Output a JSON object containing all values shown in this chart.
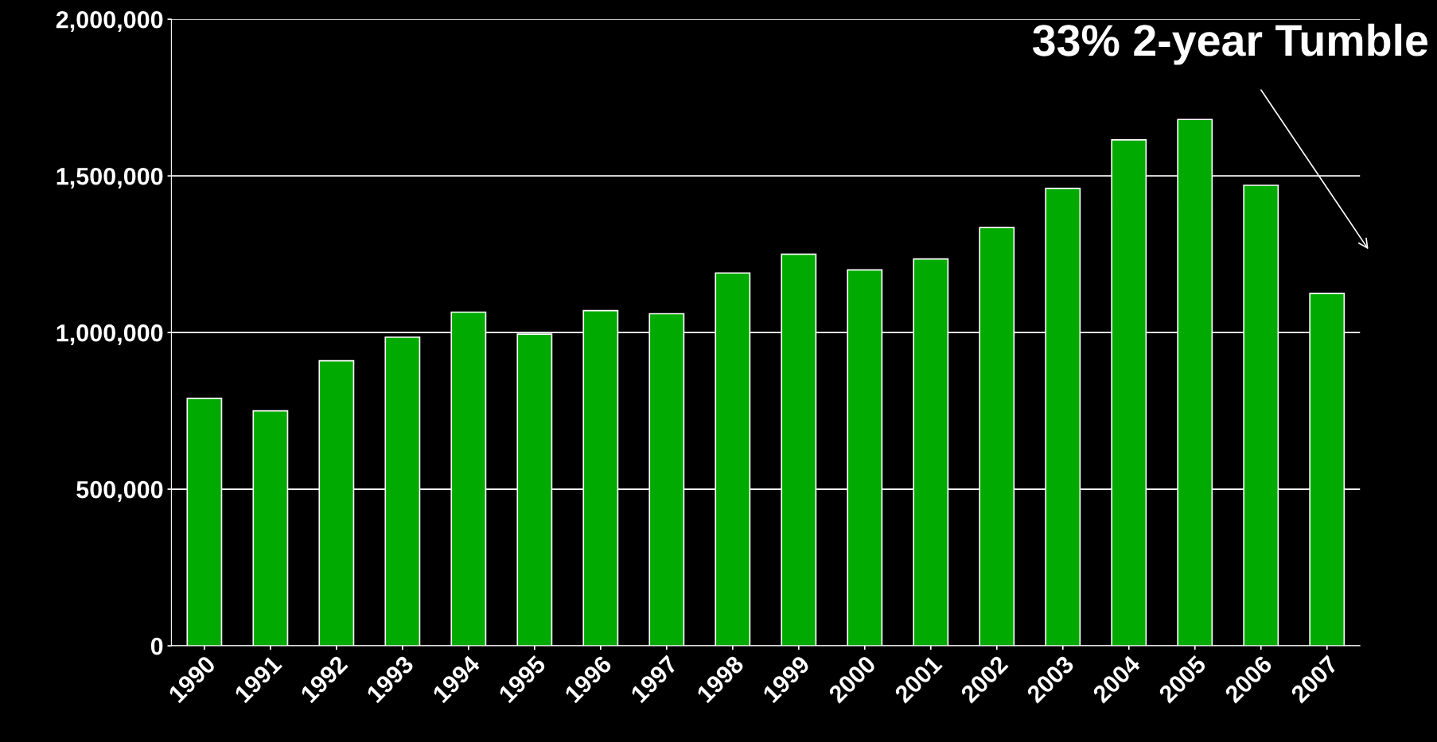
{
  "chart_data": {
    "type": "bar",
    "categories": [
      "1990",
      "1991",
      "1992",
      "1993",
      "1994",
      "1995",
      "1996",
      "1997",
      "1998",
      "1999",
      "2000",
      "2001",
      "2002",
      "2003",
      "2004",
      "2005",
      "2006",
      "2007"
    ],
    "values": [
      790000,
      750000,
      910000,
      985000,
      1065000,
      995000,
      1070000,
      1060000,
      1190000,
      1250000,
      1200000,
      1235000,
      1335000,
      1460000,
      1615000,
      1680000,
      1470000,
      1125000
    ],
    "color": "#00aa00",
    "ylim": [
      0,
      2000000
    ],
    "yticks": [
      {
        "value": 0,
        "label": "0"
      },
      {
        "value": 500000,
        "label": "500,000"
      },
      {
        "value": 1000000,
        "label": "1,000,000"
      },
      {
        "value": 1500000,
        "label": "1,500,000"
      },
      {
        "value": 2000000,
        "label": "2,000,000"
      }
    ],
    "grid": "y",
    "annotations": [
      "33% 2-year Tumble"
    ]
  }
}
